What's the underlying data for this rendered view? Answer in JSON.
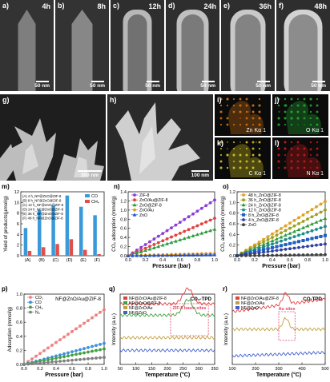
{
  "row1": [
    {
      "label": "a)",
      "time": "4h",
      "scale": "50 nm"
    },
    {
      "label": "b)",
      "time": "8h",
      "scale": "50 nm"
    },
    {
      "label": "c)",
      "time": "12h",
      "scale": "50 nm"
    },
    {
      "label": "d)",
      "time": "24h",
      "scale": "50 nm"
    },
    {
      "label": "e)",
      "time": "36h",
      "scale": "50 nm"
    },
    {
      "label": "f)",
      "time": "48h",
      "scale": "50 nm"
    }
  ],
  "row2": {
    "g": {
      "label": "g)",
      "scale": "300 nm"
    },
    "h": {
      "label": "h)",
      "scale": "100 nm"
    },
    "maps": [
      {
        "label": "i)",
        "element": "Zn Kα 1",
        "color": "#c46a10"
      },
      {
        "label": "j)",
        "element": "O Kα 1",
        "color": "#22a030"
      },
      {
        "label": "k)",
        "element": "C Kα 1",
        "color": "#c8b820"
      },
      {
        "label": "l)",
        "element": "N Kα 1",
        "color": "#b81818"
      }
    ]
  },
  "chart_data": [
    {
      "panel": "m)",
      "type": "bar",
      "ylabel": "Yield of products(µmol/g)",
      "categories": [
        "(A)",
        "(B)",
        "(C)",
        "(D)",
        "(E)",
        "(F)"
      ],
      "ylim": [
        0,
        12
      ],
      "yticks": [
        0,
        2,
        4,
        6,
        8,
        10,
        12
      ],
      "legend_notes": [
        "(A) 4 h_NF@ZnO@ZIF-8",
        "(B) 8 h_NF@ZnO@ZIF-8",
        "(C) 12 h_NF@ZnO@ZIF-8",
        "(D) 24 h_NF@ZnO@ZIF-8",
        "(E) 36 h_NF@ZnO@ZIF-8",
        "(F) 48 h_NF@ZnO@ZIF-8"
      ],
      "series": [
        {
          "name": "CO",
          "color": "#3a9ad9",
          "values": [
            5.2,
            8.6,
            9.4,
            11.3,
            9.2,
            7.6
          ]
        },
        {
          "name": "CH₄",
          "color": "#e0504a",
          "values": [
            0.9,
            1.6,
            2.2,
            3.1,
            1.1,
            0.3
          ]
        }
      ]
    },
    {
      "panel": "n)",
      "type": "line",
      "xlabel": "Pressure (bar)",
      "ylabel": "CO₂ adsorption (mmol/g)",
      "xlim": [
        0,
        1
      ],
      "ylim": [
        0,
        1.4
      ],
      "xticks": [
        0.0,
        0.2,
        0.4,
        0.6,
        0.8,
        1.0
      ],
      "yticks": [
        0.0,
        0.2,
        0.4,
        0.6,
        0.8,
        1.0,
        1.2,
        1.4
      ],
      "series": [
        {
          "name": "ZIF-8",
          "color": "#8a3ad6",
          "marker": "circle",
          "ymax": 1.22
        },
        {
          "name": "ZnO/Au@ZIF-8",
          "color": "#e04040",
          "marker": "circle",
          "ymax": 0.82
        },
        {
          "name": "ZnO@ZIF-8",
          "color": "#2c9a3a",
          "marker": "triangle",
          "ymax": 0.58
        },
        {
          "name": "ZnO/Au",
          "color": "#e09a20",
          "marker": "circle",
          "ymax": 0.05
        },
        {
          "name": "ZnO",
          "color": "#2050d0",
          "marker": "triangle",
          "ymax": 0.02
        }
      ]
    },
    {
      "panel": "o)",
      "type": "line",
      "xlabel": "Pressure (bar)",
      "ylabel": "CO₂ adsorption (mmol/g)",
      "xlim": [
        0,
        1
      ],
      "ylim": [
        0,
        1.2
      ],
      "xticks": [
        0.0,
        0.2,
        0.4,
        0.6,
        0.8,
        1.0
      ],
      "yticks": [
        0.0,
        0.2,
        0.4,
        0.6,
        0.8,
        1.0,
        1.2
      ],
      "series": [
        {
          "name": "48 h_ZnO@ZIF-8",
          "color": "#e0a020",
          "marker": "circle",
          "ymax": 1.02
        },
        {
          "name": "36 h_ZnO@ZIF-8",
          "color": "#9aa020",
          "marker": "circle",
          "ymax": 0.86
        },
        {
          "name": "24 h_ZnO@ZIF-8",
          "color": "#2c9a3a",
          "marker": "triangle",
          "ymax": 0.7
        },
        {
          "name": "12 h_ZnO@ZIF-8",
          "color": "#1a8a8a",
          "marker": "circle",
          "ymax": 0.55
        },
        {
          "name": "8 h_ZnO@ZIF-8",
          "color": "#2060c0",
          "marker": "square",
          "ymax": 0.38
        },
        {
          "name": "4 h_ZnO@ZIF-8",
          "color": "#3040a0",
          "marker": "circle",
          "ymax": 0.22
        },
        {
          "name": "ZnO",
          "color": "#404040",
          "marker": "circle",
          "ymax": 0.02
        }
      ]
    },
    {
      "panel": "p)",
      "type": "line",
      "title": "NF@ZnO/Au@ZIF-8",
      "xlabel": "Pressure (bar)",
      "ylabel": "Adsorption (mmol/g)",
      "xlim": [
        0,
        1
      ],
      "ylim": [
        0,
        1.0
      ],
      "xticks": [
        0.0,
        0.2,
        0.4,
        0.6,
        0.8,
        1.0
      ],
      "yticks": [
        0.0,
        0.2,
        0.4,
        0.6,
        0.8,
        1.0
      ],
      "series": [
        {
          "name": "CO₂",
          "color": "#f08080",
          "marker": "circle",
          "ymax": 0.78
        },
        {
          "name": "CO",
          "color": "#4090e0",
          "marker": "circle",
          "ymax": 0.3
        },
        {
          "name": "CH₄",
          "color": "#40a040",
          "marker": "circle",
          "ymax": 0.22
        },
        {
          "name": "N₂",
          "color": "#808080",
          "marker": "circle",
          "ymax": 0.1
        }
      ]
    },
    {
      "panel": "q)",
      "type": "line",
      "title": "CO₂-TPD",
      "xlabel": "Temperature (°C)",
      "ylabel": "Intensity (a.u.)",
      "xlim": [
        50,
        350
      ],
      "xticks": [
        50,
        100,
        150,
        200,
        250,
        300,
        350
      ],
      "annotation": "ZIF-8 basic sites",
      "series": [
        {
          "name": "NF@ZnO/Au@ZIF-8",
          "color": "#e04040",
          "offset": 0.86
        },
        {
          "name": "NF@ZnO@ZIF-8",
          "color": "#40a040",
          "offset": 0.7
        },
        {
          "name": "NF@ZnO/Au",
          "color": "#c0a040",
          "offset": 0.38
        },
        {
          "name": "NF@ZnO",
          "color": "#4060d0",
          "offset": 0.2
        }
      ]
    },
    {
      "panel": "r)",
      "type": "line",
      "title": "CO-TPD",
      "xlabel": "Temperature (°C)",
      "ylabel": "Intensity (a.u.)",
      "xlim": [
        100,
        500
      ],
      "xticks": [
        100,
        200,
        300,
        400,
        500
      ],
      "annotation": "Au sites",
      "series": [
        {
          "name": "NF@ZnO/Au@ZIF-8",
          "color": "#e04040",
          "offset": 0.75
        },
        {
          "name": "NF@ZnO/Au",
          "color": "#c0a040",
          "offset": 0.5
        },
        {
          "name": "NF@ZnO",
          "color": "#4060d0",
          "offset": 0.12
        }
      ]
    }
  ]
}
